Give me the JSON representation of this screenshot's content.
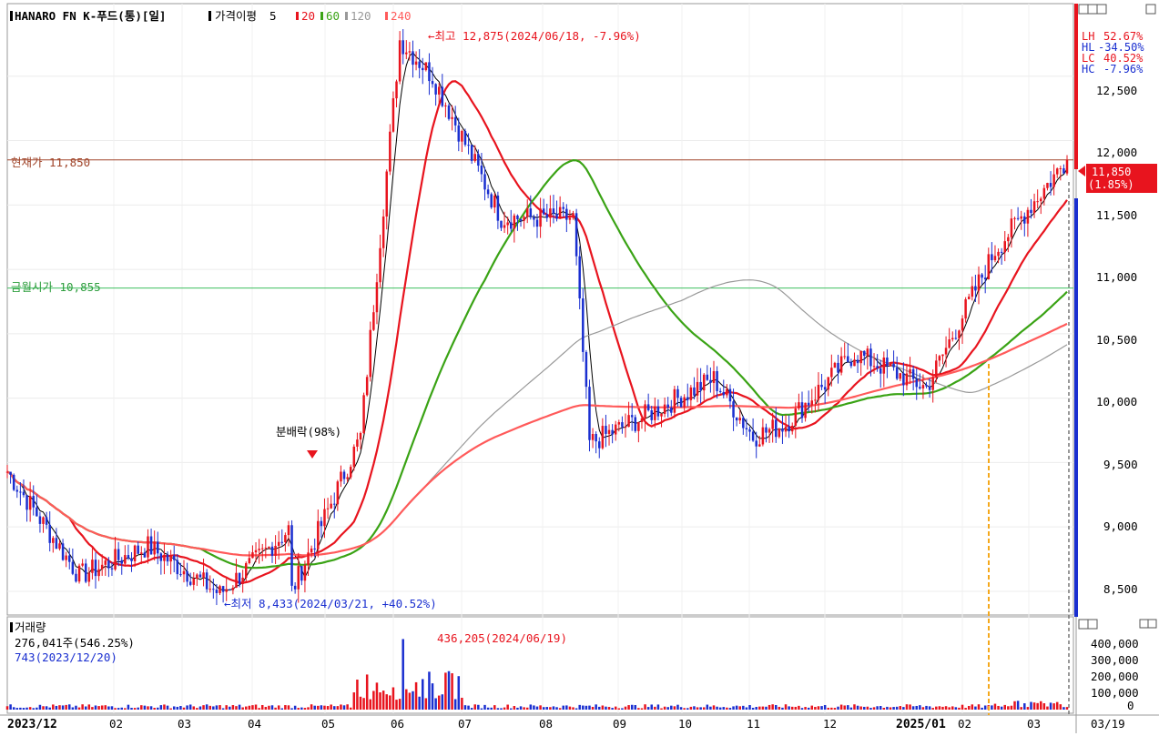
{
  "header": {
    "title": "HANARO FN K-푸드(통)[일]",
    "ma_label": "가격이평",
    "ma_periods": [
      "5",
      "20",
      "60",
      "120",
      "240"
    ],
    "ma_colors": [
      "#000000",
      "#e8141e",
      "#3aa315",
      "#999999",
      "#ff5a5a"
    ]
  },
  "price_panel": {
    "y_ticks": [
      "12,500",
      "12,000",
      "11,500",
      "11,000",
      "10,500",
      "10,000",
      "9,500",
      "9,000",
      "8,500"
    ],
    "ylim": [
      8330,
      13000
    ],
    "stats": [
      {
        "label": "LH",
        "value": "52.67%",
        "color": "#e8141e"
      },
      {
        "label": "HL",
        "value": "-34.50%",
        "color": "#1a2fd0"
      },
      {
        "label": "LC",
        "value": "40.52%",
        "color": "#e8141e"
      },
      {
        "label": "HC",
        "value": "-7.96%",
        "color": "#1a2fd0"
      }
    ],
    "current_price": {
      "label": "현재가 11,850",
      "value": 11850,
      "box_price": "11,850",
      "box_change": "(1.85%)"
    },
    "monthly_open": {
      "label": "금월시가 10,855",
      "value": 10855
    },
    "high_annotation": "←최고 12,875(2024/06/18, -7.96%)",
    "low_annotation": "←최저 8,433(2024/03/21, +40.52%)",
    "dividend_annotation": "분배락(98%)",
    "icons": [
      "lock-icon",
      "dock-icon",
      "restore-icon",
      "maximize-icon"
    ]
  },
  "volume_panel": {
    "title": "거래량",
    "current_volume": "276,041주(546.25%)",
    "low_volume": "743(2023/12/20)",
    "high_annotation": "436,205(2024/06/19)",
    "y_ticks": [
      "400,000",
      "300,000",
      "200,000",
      "100,000",
      "0"
    ]
  },
  "x_axis": {
    "labels": [
      "2023/12",
      "02",
      "03",
      "04",
      "05",
      "06",
      "07",
      "08",
      "09",
      "10",
      "11",
      "12",
      "2025/01",
      "02",
      "03"
    ],
    "current_date": "03/19"
  },
  "chart_data": {
    "type": "candlestick",
    "title": "HANARO FN K-푸드(통)[일]",
    "x_range": [
      "2023/12",
      "2025/03/19"
    ],
    "y_range": [
      8330,
      13000
    ],
    "series": [
      {
        "name": "5",
        "type": "line",
        "color": "#000000"
      },
      {
        "name": "20",
        "type": "line",
        "color": "#e8141e"
      },
      {
        "name": "60",
        "type": "line",
        "color": "#3aa315"
      },
      {
        "name": "120",
        "type": "line",
        "color": "#999999"
      },
      {
        "name": "240",
        "type": "line",
        "color": "#ff5a5a"
      }
    ],
    "close_path": [
      [
        "2023/12",
        9430
      ],
      [
        "2024/01",
        8620
      ],
      [
        "2024/02",
        8850
      ],
      [
        "2024/03",
        8480
      ],
      [
        "2024/04",
        8980
      ],
      [
        "2024/05",
        9700
      ],
      [
        "2024/06",
        12500
      ],
      [
        "2024/07",
        11400
      ],
      [
        "2024/08",
        11400
      ],
      [
        "2024/09",
        9850
      ],
      [
        "2024/10",
        10150
      ],
      [
        "2024/11",
        9800
      ],
      [
        "2024/12",
        10350
      ],
      [
        "2025/01",
        10080
      ],
      [
        "2025/02",
        11150
      ],
      [
        "2025/03",
        11850
      ]
    ],
    "key_points": {
      "high": {
        "value": 12875,
        "date": "2024/06/18",
        "change_to_current": "-7.96%"
      },
      "low": {
        "value": 8433,
        "date": "2024/03/21",
        "change_to_current": "+40.52%"
      },
      "current": {
        "value": 11850,
        "change": "1.85%"
      },
      "monthly_open": 10855
    },
    "volume": {
      "ylim": [
        0,
        450000
      ],
      "current": 276041,
      "max": {
        "value": 436205,
        "date": "2024/06/19"
      },
      "min": {
        "value": 743,
        "date": "2023/12/20"
      }
    }
  }
}
